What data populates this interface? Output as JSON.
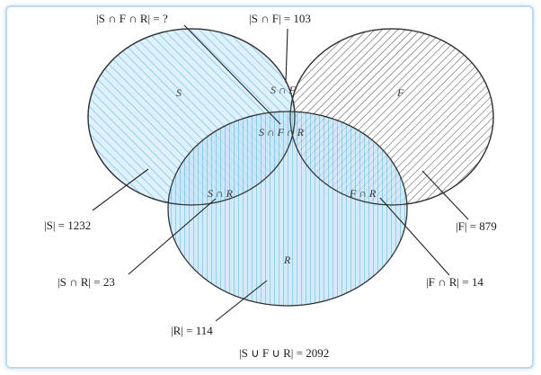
{
  "diagram": {
    "sets": {
      "S": {
        "label": "S"
      },
      "F": {
        "label": "F"
      },
      "R": {
        "label": "R"
      }
    },
    "regions": {
      "s_and_f": "S ∩ F",
      "s_f_r": "S ∩ F ∩ R",
      "s_and_r": "S ∩ R",
      "f_and_r": "F ∩ R"
    },
    "callouts": {
      "sfr_count": "|S ∩ F ∩ R| = ?",
      "sf_count": "|S ∩ F| = 103",
      "s_count": "|S| = 1232",
      "f_count": "|F| = 879",
      "sr_count": "|S ∩ R| = 23",
      "fr_count": "|F ∩ R| = 14",
      "r_count": "|R| = 114",
      "union_count": "|S ∪ F ∪ R| = 2092"
    },
    "colors": {
      "s_fill": "#cfe8f8",
      "s_hatch": "#5bb6e4",
      "f_hatch": "#555555",
      "r_fill": "#bfe1f6",
      "r_hatch": "#3fa6dc",
      "outline": "#333333",
      "frame": "#bcd9ef"
    }
  }
}
